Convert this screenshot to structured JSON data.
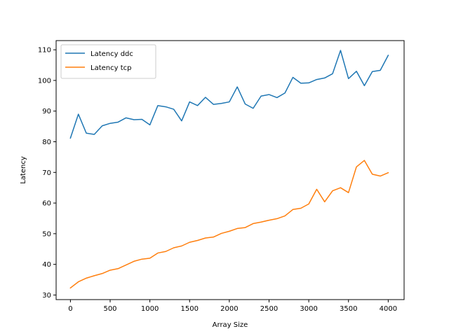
{
  "chart_data": {
    "type": "line",
    "xlabel": "Array Size",
    "ylabel": "Latency",
    "xlim": [
      -180,
      4200
    ],
    "ylim": [
      28.5,
      113
    ],
    "xticks": [
      0,
      500,
      1000,
      1500,
      2000,
      2500,
      3000,
      3500,
      4000
    ],
    "yticks": [
      30,
      40,
      50,
      60,
      70,
      80,
      90,
      100,
      110
    ],
    "grid": false,
    "legend_position": "top-left",
    "x": [
      0,
      100,
      200,
      300,
      400,
      500,
      600,
      700,
      800,
      900,
      1000,
      1100,
      1200,
      1300,
      1400,
      1500,
      1600,
      1700,
      1800,
      1900,
      2000,
      2100,
      2200,
      2300,
      2400,
      2500,
      2600,
      2700,
      2800,
      2900,
      3000,
      3100,
      3200,
      3300,
      3400,
      3500,
      3600,
      3700,
      3800,
      3900,
      4000
    ],
    "series": [
      {
        "name": "Latency ddc",
        "color": "#1f77b4",
        "values": [
          81.2,
          89.0,
          82.8,
          82.4,
          85.2,
          86.0,
          86.4,
          87.8,
          87.2,
          87.3,
          85.5,
          91.8,
          91.4,
          90.6,
          86.8,
          93.0,
          91.8,
          94.5,
          92.2,
          92.5,
          93.0,
          97.9,
          92.3,
          90.9,
          94.9,
          95.4,
          94.4,
          95.9,
          101.0,
          99.1,
          99.2,
          100.3,
          100.8,
          102.2,
          109.8,
          100.6,
          103.0,
          98.3,
          102.9,
          103.3,
          108.2
        ]
      },
      {
        "name": "Latency tcp",
        "color": "#ff7f0e",
        "values": [
          32.3,
          34.3,
          35.5,
          36.3,
          37.0,
          38.1,
          38.6,
          39.8,
          41.0,
          41.7,
          42.0,
          43.7,
          44.2,
          45.4,
          46.0,
          47.2,
          47.8,
          48.6,
          48.9,
          50.1,
          50.8,
          51.7,
          52.0,
          53.3,
          53.8,
          54.4,
          54.9,
          55.8,
          57.9,
          58.3,
          59.7,
          64.5,
          60.4,
          64.0,
          65.0,
          63.4,
          71.8,
          73.9,
          69.4,
          68.8,
          69.9
        ]
      }
    ]
  }
}
